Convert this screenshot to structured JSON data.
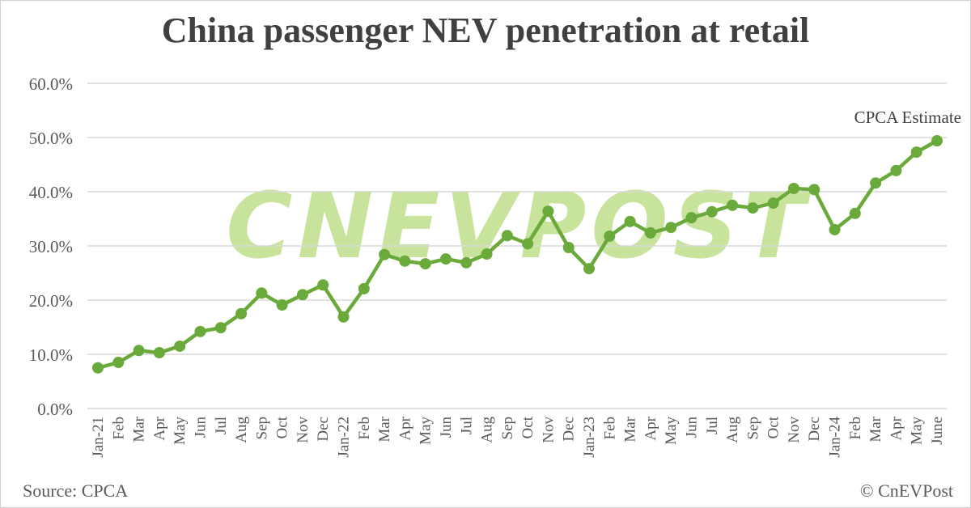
{
  "chart_data": {
    "type": "line",
    "title": "China passenger NEV penetration at retail",
    "xlabel": "",
    "ylabel": "",
    "ylim": [
      0,
      60
    ],
    "yticks": [
      "0.0%",
      "10.0%",
      "20.0%",
      "30.0%",
      "40.0%",
      "50.0%",
      "60.0%"
    ],
    "grid": true,
    "categories": [
      "Jan-21",
      "Feb",
      "Mar",
      "Apr",
      "May",
      "Jun",
      "Jul",
      "Aug",
      "Sep",
      "Oct",
      "Nov",
      "Dec",
      "Jan-22",
      "Feb",
      "Mar",
      "Apr",
      "May",
      "Jun",
      "Jul",
      "Aug",
      "Sep",
      "Oct",
      "Nov",
      "Dec",
      "Jan-23",
      "Feb",
      "Mar",
      "Apr",
      "May",
      "Jun",
      "Jul",
      "Aug",
      "Sep",
      "Oct",
      "Nov",
      "Dec",
      "Jan-24",
      "Feb",
      "Mar",
      "Apr",
      "May",
      "June"
    ],
    "values": [
      7.5,
      8.5,
      10.7,
      10.3,
      11.5,
      14.2,
      14.9,
      17.5,
      21.3,
      19.1,
      21.0,
      22.8,
      16.9,
      22.1,
      28.4,
      27.2,
      26.7,
      27.6,
      26.9,
      28.5,
      31.9,
      30.4,
      36.4,
      29.7,
      25.8,
      31.8,
      34.5,
      32.4,
      33.4,
      35.2,
      36.3,
      37.5,
      37.0,
      37.9,
      40.6,
      40.4,
      33.0,
      36.0,
      41.6,
      43.9,
      47.3,
      49.4
    ],
    "annotation": "CPCA Estimate",
    "color": "#6aaa3a"
  },
  "footer": {
    "source": "Source: CPCA",
    "copyright": "© CnEVPost"
  },
  "watermark": "CNEVPOST"
}
